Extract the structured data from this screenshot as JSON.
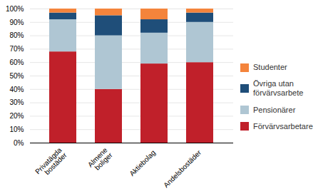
{
  "chart_data": {
    "type": "bar",
    "stacked": true,
    "categories": [
      "Privatägda\nbostäder",
      "Almene\nboliger",
      "Aktiebolag",
      "Andelsbostäder"
    ],
    "series": [
      {
        "name": "Förvärvsarbetare",
        "color": "#C0202A",
        "values": [
          68,
          40,
          59,
          60
        ]
      },
      {
        "name": "Pensionärer",
        "color": "#AFC6D3",
        "values": [
          24,
          40,
          23,
          30
        ]
      },
      {
        "name": "Övriga utan\nförvärvsarbete",
        "color": "#1F4E79",
        "values": [
          5,
          15,
          10,
          7
        ]
      },
      {
        "name": "Studenter",
        "color": "#F4843C",
        "values": [
          3,
          5,
          8,
          3
        ]
      }
    ],
    "ylim": [
      0,
      100
    ],
    "yticks": [
      {
        "value": 0,
        "label": "0%"
      },
      {
        "value": 10,
        "label": "10%"
      },
      {
        "value": 20,
        "label": "20%"
      },
      {
        "value": 30,
        "label": "30%"
      },
      {
        "value": 40,
        "label": "40%"
      },
      {
        "value": 50,
        "label": "50%"
      },
      {
        "value": 60,
        "label": "60%"
      },
      {
        "value": 70,
        "label": "70%"
      },
      {
        "value": 80,
        "label": "80%"
      },
      {
        "value": 90,
        "label": "90%"
      },
      {
        "value": 100,
        "label": "100%"
      }
    ],
    "grid": true,
    "legend": "right"
  }
}
